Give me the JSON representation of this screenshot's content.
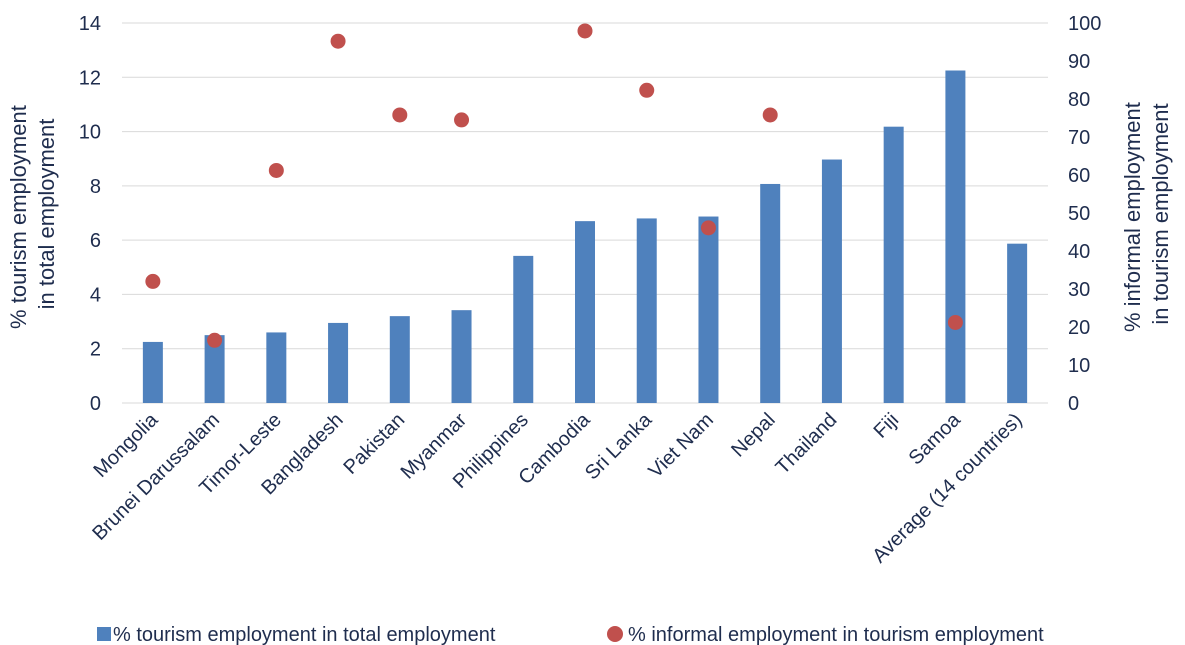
{
  "chart_data": {
    "type": "bar",
    "categories": [
      "Mongolia",
      "Brunei Darussalam",
      "Timor-Leste",
      "Bangladesh",
      "Pakistan",
      "Myanmar",
      "Philippines",
      "Cambodia",
      "Sri Lanka",
      "Viet Nam",
      "Nepal",
      "Thailand",
      "Fiji",
      "Samoa",
      "Average (14 countries)"
    ],
    "series": [
      {
        "name": "% tourism employment in total employment",
        "type": "bar",
        "axis": "left",
        "color": "#4f81bd",
        "values": [
          2.25,
          2.5,
          2.6,
          2.95,
          3.2,
          3.42,
          5.42,
          6.7,
          6.8,
          6.87,
          8.07,
          8.97,
          10.18,
          12.25,
          5.87
        ]
      },
      {
        "name": "% informal employment in tourism employment",
        "type": "scatter",
        "axis": "right",
        "color": "#c0504d",
        "values": [
          32,
          16.5,
          61.2,
          95.2,
          75.8,
          74.5,
          null,
          97.9,
          82.3,
          46.1,
          75.8,
          null,
          null,
          21.2,
          null
        ]
      }
    ],
    "ylabel": "% tourism employment in total employment",
    "y2label": "% informal employment in tourism employment",
    "ylim": [
      0,
      14
    ],
    "yticks": [
      "0",
      "2",
      "4",
      "6",
      "8",
      "10",
      "12",
      "14"
    ],
    "y2lim": [
      0,
      100
    ],
    "y2ticks": [
      "0",
      "10",
      "20",
      "30",
      "40",
      "50",
      "60",
      "70",
      "80",
      "90",
      "100"
    ],
    "grid": true,
    "legend_position": "bottom"
  }
}
